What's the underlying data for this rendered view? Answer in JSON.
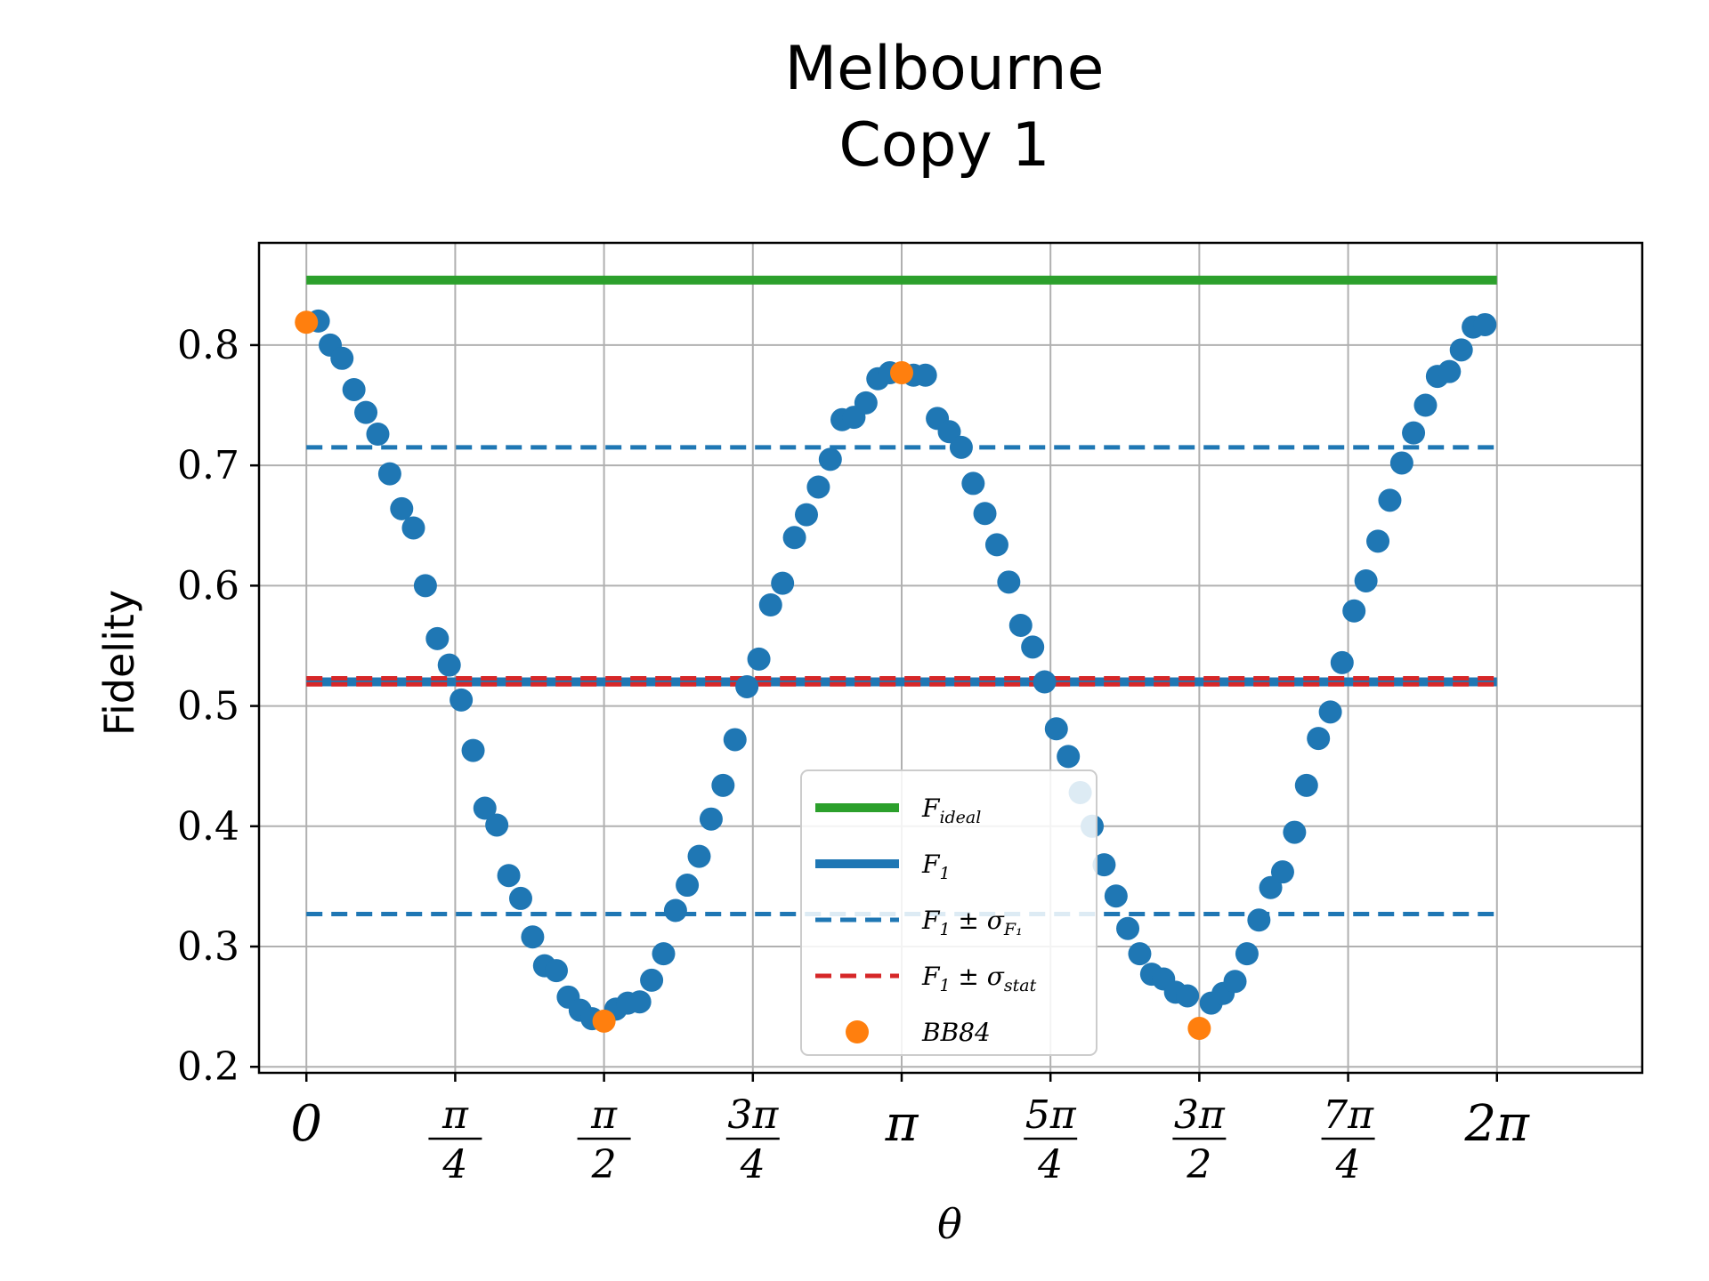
{
  "chart_data": {
    "type": "scatter",
    "title_lines": [
      "Melbourne",
      "Copy 1"
    ],
    "xlabel": "θ",
    "ylabel": "Fidelity",
    "xlim": [
      -0.25,
      7.05
    ],
    "ylim": [
      0.195,
      0.885
    ],
    "grid": true,
    "x_ticks": [
      {
        "value": 0,
        "kind": "single",
        "text": "0"
      },
      {
        "value": 0.7854,
        "kind": "frac",
        "num": "π",
        "den": "4"
      },
      {
        "value": 1.5708,
        "kind": "frac",
        "num": "π",
        "den": "2"
      },
      {
        "value": 2.3562,
        "kind": "frac",
        "num": "3π",
        "den": "4"
      },
      {
        "value": 3.1416,
        "kind": "single",
        "text": "π"
      },
      {
        "value": 3.927,
        "kind": "frac",
        "num": "5π",
        "den": "4"
      },
      {
        "value": 4.7124,
        "kind": "frac",
        "num": "3π",
        "den": "2"
      },
      {
        "value": 5.4978,
        "kind": "frac",
        "num": "7π",
        "den": "4"
      },
      {
        "value": 6.2832,
        "kind": "single",
        "text": "2π"
      }
    ],
    "y_ticks": [
      {
        "value": 0.2,
        "label": "0.2"
      },
      {
        "value": 0.3,
        "label": "0.3"
      },
      {
        "value": 0.4,
        "label": "0.4"
      },
      {
        "value": 0.5,
        "label": "0.5"
      },
      {
        "value": 0.6,
        "label": "0.6"
      },
      {
        "value": 0.7,
        "label": "0.7"
      },
      {
        "value": 0.8,
        "label": "0.8"
      }
    ],
    "lines": [
      {
        "label": "F_ideal",
        "y": 0.854,
        "x_range": [
          0,
          6.2832
        ],
        "color": "#2ca02c",
        "style": "solid",
        "width": 10
      },
      {
        "label": "F_1",
        "y": 0.52,
        "x_range": [
          0,
          6.2832
        ],
        "color": "#1f77b4",
        "style": "solid",
        "width": 10
      },
      {
        "label": "F_1 ± σ_F1 upper",
        "y": 0.715,
        "x_range": [
          0,
          6.2832
        ],
        "color": "#1f77b4",
        "style": "dashed",
        "width": 5
      },
      {
        "label": "F_1 ± σ_F1 lower",
        "y": 0.327,
        "x_range": [
          0,
          6.2832
        ],
        "color": "#1f77b4",
        "style": "dashed",
        "width": 5
      },
      {
        "label": "F_1 ± σ_stat upper",
        "y": 0.523,
        "x_range": [
          0,
          6.2832
        ],
        "color": "#d62728",
        "style": "dashed",
        "width": 5
      },
      {
        "label": "F_1 ± σ_stat lower",
        "y": 0.518,
        "x_range": [
          0,
          6.2832
        ],
        "color": "#d62728",
        "style": "dashed",
        "width": 5
      }
    ],
    "series": [
      {
        "color": "#1f77b4",
        "points": [
          [
            0.063,
            0.82
          ],
          [
            0.126,
            0.8
          ],
          [
            0.188,
            0.789
          ],
          [
            0.251,
            0.763
          ],
          [
            0.314,
            0.744
          ],
          [
            0.377,
            0.726
          ],
          [
            0.44,
            0.693
          ],
          [
            0.503,
            0.664
          ],
          [
            0.565,
            0.648
          ],
          [
            0.628,
            0.6
          ],
          [
            0.691,
            0.556
          ],
          [
            0.754,
            0.534
          ],
          [
            0.817,
            0.505
          ],
          [
            0.88,
            0.463
          ],
          [
            0.942,
            0.415
          ],
          [
            1.005,
            0.401
          ],
          [
            1.068,
            0.359
          ],
          [
            1.131,
            0.34
          ],
          [
            1.194,
            0.308
          ],
          [
            1.257,
            0.284
          ],
          [
            1.319,
            0.28
          ],
          [
            1.382,
            0.258
          ],
          [
            1.445,
            0.247
          ],
          [
            1.508,
            0.24
          ],
          [
            1.633,
            0.248
          ],
          [
            1.696,
            0.253
          ],
          [
            1.759,
            0.254
          ],
          [
            1.822,
            0.272
          ],
          [
            1.885,
            0.294
          ],
          [
            1.948,
            0.33
          ],
          [
            2.01,
            0.351
          ],
          [
            2.073,
            0.375
          ],
          [
            2.136,
            0.406
          ],
          [
            2.199,
            0.434
          ],
          [
            2.262,
            0.472
          ],
          [
            2.325,
            0.516
          ],
          [
            2.388,
            0.539
          ],
          [
            2.45,
            0.584
          ],
          [
            2.513,
            0.602
          ],
          [
            2.576,
            0.64
          ],
          [
            2.639,
            0.659
          ],
          [
            2.702,
            0.682
          ],
          [
            2.765,
            0.705
          ],
          [
            2.827,
            0.738
          ],
          [
            2.89,
            0.74
          ],
          [
            2.953,
            0.752
          ],
          [
            3.016,
            0.772
          ],
          [
            3.079,
            0.777
          ],
          [
            3.204,
            0.775
          ],
          [
            3.267,
            0.775
          ],
          [
            3.33,
            0.739
          ],
          [
            3.393,
            0.728
          ],
          [
            3.456,
            0.715
          ],
          [
            3.519,
            0.685
          ],
          [
            3.581,
            0.66
          ],
          [
            3.644,
            0.634
          ],
          [
            3.707,
            0.603
          ],
          [
            3.77,
            0.567
          ],
          [
            3.833,
            0.549
          ],
          [
            3.896,
            0.52
          ],
          [
            3.958,
            0.481
          ],
          [
            4.021,
            0.458
          ],
          [
            4.084,
            0.428
          ],
          [
            4.147,
            0.4
          ],
          [
            4.21,
            0.368
          ],
          [
            4.273,
            0.342
          ],
          [
            4.335,
            0.315
          ],
          [
            4.398,
            0.294
          ],
          [
            4.461,
            0.277
          ],
          [
            4.524,
            0.273
          ],
          [
            4.587,
            0.262
          ],
          [
            4.65,
            0.259
          ],
          [
            4.775,
            0.253
          ],
          [
            4.838,
            0.261
          ],
          [
            4.901,
            0.271
          ],
          [
            4.964,
            0.294
          ],
          [
            5.027,
            0.322
          ],
          [
            5.089,
            0.349
          ],
          [
            5.152,
            0.362
          ],
          [
            5.215,
            0.395
          ],
          [
            5.278,
            0.434
          ],
          [
            5.341,
            0.473
          ],
          [
            5.404,
            0.495
          ],
          [
            5.466,
            0.536
          ],
          [
            5.529,
            0.579
          ],
          [
            5.592,
            0.604
          ],
          [
            5.655,
            0.637
          ],
          [
            5.718,
            0.671
          ],
          [
            5.781,
            0.702
          ],
          [
            5.843,
            0.727
          ],
          [
            5.906,
            0.75
          ],
          [
            5.969,
            0.774
          ],
          [
            6.032,
            0.778
          ],
          [
            6.095,
            0.796
          ],
          [
            6.158,
            0.815
          ],
          [
            6.22,
            0.817
          ]
        ]
      },
      {
        "name": "BB84",
        "color": "#ff7f0e",
        "points": [
          [
            0,
            0.819
          ],
          [
            1.5708,
            0.238
          ],
          [
            3.1416,
            0.777
          ],
          [
            4.7124,
            0.232
          ]
        ]
      }
    ],
    "legend": {
      "placement": "lower center",
      "entries": [
        {
          "main": "F",
          "sub": "ideal",
          "suffix": "",
          "suffix_sub": "",
          "color": "#2ca02c",
          "kind": "solid"
        },
        {
          "main": "F",
          "sub": "1",
          "suffix": "",
          "suffix_sub": "",
          "color": "#1f77b4",
          "kind": "solid"
        },
        {
          "main": "F",
          "sub": "1",
          "suffix": " ± σ",
          "suffix_sub": "F₁",
          "color": "#1f77b4",
          "kind": "dashed"
        },
        {
          "main": "F",
          "sub": "1",
          "suffix": " ± σ",
          "suffix_sub": "stat",
          "color": "#d62728",
          "kind": "dashed"
        },
        {
          "main": "BB84",
          "sub": "",
          "suffix": "",
          "suffix_sub": "",
          "color": "#ff7f0e",
          "kind": "marker"
        }
      ]
    }
  }
}
